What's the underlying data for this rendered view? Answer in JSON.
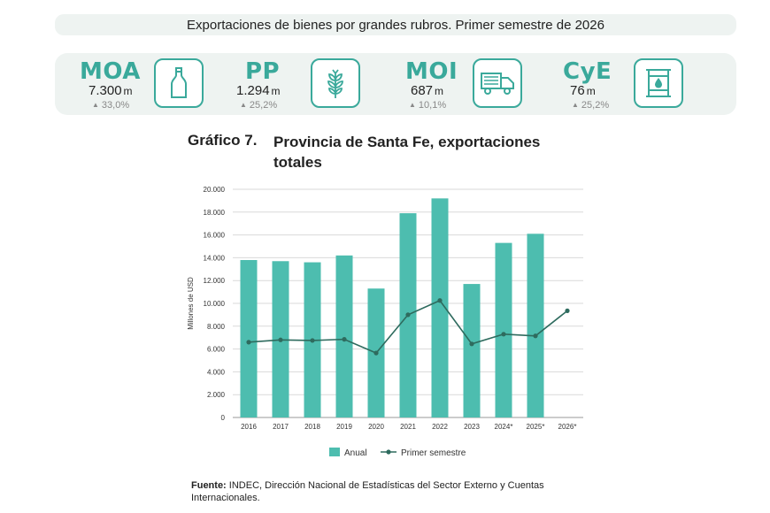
{
  "header": {
    "title": "Exportaciones de bienes por grandes rubros. Primer semestre de 2026"
  },
  "kpis": [
    {
      "code": "MOA",
      "value": "7.300",
      "unit": "m",
      "change": "33,0%",
      "icon": "bottle-icon"
    },
    {
      "code": "PP",
      "value": "1.294",
      "unit": "m",
      "change": "25,2%",
      "icon": "wheat-icon"
    },
    {
      "code": "MOI",
      "value": "687",
      "unit": "m",
      "change": "10,1%",
      "icon": "truck-icon"
    },
    {
      "code": "CyE",
      "value": "76",
      "unit": "m",
      "change": "25,2%",
      "icon": "oil-barrel-icon"
    }
  ],
  "colors": {
    "accent": "#3aa99b",
    "bar": "#4dbdaf",
    "line": "#2e6b5e",
    "panel": "#eef3f1"
  },
  "chart_data": {
    "type": "bar",
    "number": "Gráfico 7.",
    "title": "Provincia de Santa Fe, exportaciones totales",
    "ylabel": "Millones de USD",
    "xlabel": "",
    "ylim": [
      0,
      20000
    ],
    "yticks": [
      "0",
      "2.000",
      "4.000",
      "6.000",
      "8.000",
      "10.000",
      "12.000",
      "14.000",
      "16.000",
      "18.000",
      "20.000"
    ],
    "categories": [
      "2016",
      "2017",
      "2018",
      "2019",
      "2020",
      "2021",
      "2022",
      "2023",
      "2024*",
      "2025*",
      "2026*"
    ],
    "series": [
      {
        "name": "Anual",
        "type": "bar",
        "values": [
          13800,
          13700,
          13600,
          14200,
          11300,
          17900,
          19200,
          11700,
          15300,
          16100,
          null
        ]
      },
      {
        "name": "Primer semestre",
        "type": "line",
        "values": [
          6600,
          6800,
          6750,
          6850,
          5650,
          9000,
          10250,
          6450,
          7300,
          7150,
          9350
        ]
      }
    ],
    "grid": true,
    "legend": "bottom"
  },
  "source": {
    "label": "Fuente:",
    "text": "INDEC, Dirección Nacional de Estadísticas del Sector Externo y Cuentas Internacionales."
  }
}
